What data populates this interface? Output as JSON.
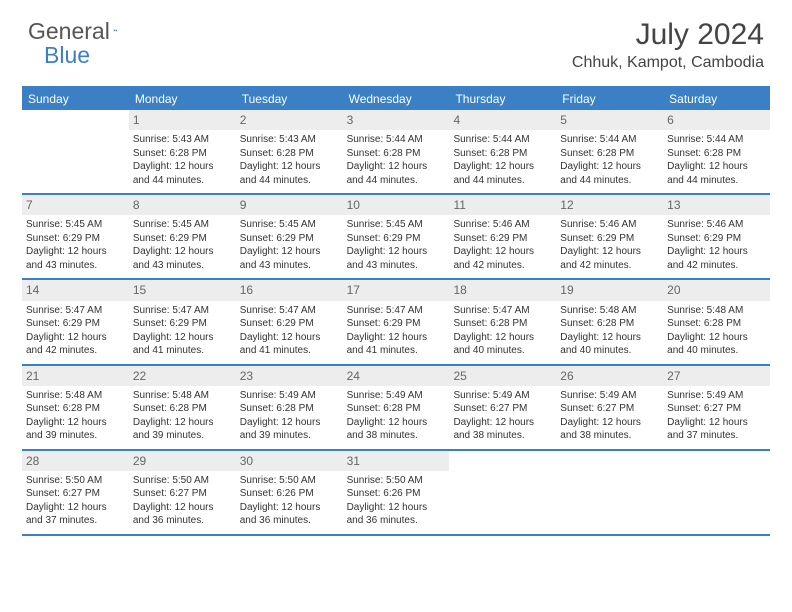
{
  "logo": {
    "word1": "General",
    "word2": "Blue"
  },
  "title": "July 2024",
  "location": "Chhuk, Kampot, Cambodia",
  "colors": {
    "brand_blue": "#3b7fc4",
    "header_bg": "#3b7fc4",
    "header_text": "#ffffff",
    "daynum_bg": "#ededed",
    "daynum_text": "#666666",
    "body_text": "#333333",
    "background": "#ffffff"
  },
  "day_headers": [
    "Sunday",
    "Monday",
    "Tuesday",
    "Wednesday",
    "Thursday",
    "Friday",
    "Saturday"
  ],
  "weeks": [
    [
      {
        "num": "",
        "lines": []
      },
      {
        "num": "1",
        "lines": [
          "Sunrise: 5:43 AM",
          "Sunset: 6:28 PM",
          "Daylight: 12 hours and 44 minutes."
        ]
      },
      {
        "num": "2",
        "lines": [
          "Sunrise: 5:43 AM",
          "Sunset: 6:28 PM",
          "Daylight: 12 hours and 44 minutes."
        ]
      },
      {
        "num": "3",
        "lines": [
          "Sunrise: 5:44 AM",
          "Sunset: 6:28 PM",
          "Daylight: 12 hours and 44 minutes."
        ]
      },
      {
        "num": "4",
        "lines": [
          "Sunrise: 5:44 AM",
          "Sunset: 6:28 PM",
          "Daylight: 12 hours and 44 minutes."
        ]
      },
      {
        "num": "5",
        "lines": [
          "Sunrise: 5:44 AM",
          "Sunset: 6:28 PM",
          "Daylight: 12 hours and 44 minutes."
        ]
      },
      {
        "num": "6",
        "lines": [
          "Sunrise: 5:44 AM",
          "Sunset: 6:28 PM",
          "Daylight: 12 hours and 44 minutes."
        ]
      }
    ],
    [
      {
        "num": "7",
        "lines": [
          "Sunrise: 5:45 AM",
          "Sunset: 6:29 PM",
          "Daylight: 12 hours and 43 minutes."
        ]
      },
      {
        "num": "8",
        "lines": [
          "Sunrise: 5:45 AM",
          "Sunset: 6:29 PM",
          "Daylight: 12 hours and 43 minutes."
        ]
      },
      {
        "num": "9",
        "lines": [
          "Sunrise: 5:45 AM",
          "Sunset: 6:29 PM",
          "Daylight: 12 hours and 43 minutes."
        ]
      },
      {
        "num": "10",
        "lines": [
          "Sunrise: 5:45 AM",
          "Sunset: 6:29 PM",
          "Daylight: 12 hours and 43 minutes."
        ]
      },
      {
        "num": "11",
        "lines": [
          "Sunrise: 5:46 AM",
          "Sunset: 6:29 PM",
          "Daylight: 12 hours and 42 minutes."
        ]
      },
      {
        "num": "12",
        "lines": [
          "Sunrise: 5:46 AM",
          "Sunset: 6:29 PM",
          "Daylight: 12 hours and 42 minutes."
        ]
      },
      {
        "num": "13",
        "lines": [
          "Sunrise: 5:46 AM",
          "Sunset: 6:29 PM",
          "Daylight: 12 hours and 42 minutes."
        ]
      }
    ],
    [
      {
        "num": "14",
        "lines": [
          "Sunrise: 5:47 AM",
          "Sunset: 6:29 PM",
          "Daylight: 12 hours and 42 minutes."
        ]
      },
      {
        "num": "15",
        "lines": [
          "Sunrise: 5:47 AM",
          "Sunset: 6:29 PM",
          "Daylight: 12 hours and 41 minutes."
        ]
      },
      {
        "num": "16",
        "lines": [
          "Sunrise: 5:47 AM",
          "Sunset: 6:29 PM",
          "Daylight: 12 hours and 41 minutes."
        ]
      },
      {
        "num": "17",
        "lines": [
          "Sunrise: 5:47 AM",
          "Sunset: 6:29 PM",
          "Daylight: 12 hours and 41 minutes."
        ]
      },
      {
        "num": "18",
        "lines": [
          "Sunrise: 5:47 AM",
          "Sunset: 6:28 PM",
          "Daylight: 12 hours and 40 minutes."
        ]
      },
      {
        "num": "19",
        "lines": [
          "Sunrise: 5:48 AM",
          "Sunset: 6:28 PM",
          "Daylight: 12 hours and 40 minutes."
        ]
      },
      {
        "num": "20",
        "lines": [
          "Sunrise: 5:48 AM",
          "Sunset: 6:28 PM",
          "Daylight: 12 hours and 40 minutes."
        ]
      }
    ],
    [
      {
        "num": "21",
        "lines": [
          "Sunrise: 5:48 AM",
          "Sunset: 6:28 PM",
          "Daylight: 12 hours and 39 minutes."
        ]
      },
      {
        "num": "22",
        "lines": [
          "Sunrise: 5:48 AM",
          "Sunset: 6:28 PM",
          "Daylight: 12 hours and 39 minutes."
        ]
      },
      {
        "num": "23",
        "lines": [
          "Sunrise: 5:49 AM",
          "Sunset: 6:28 PM",
          "Daylight: 12 hours and 39 minutes."
        ]
      },
      {
        "num": "24",
        "lines": [
          "Sunrise: 5:49 AM",
          "Sunset: 6:28 PM",
          "Daylight: 12 hours and 38 minutes."
        ]
      },
      {
        "num": "25",
        "lines": [
          "Sunrise: 5:49 AM",
          "Sunset: 6:27 PM",
          "Daylight: 12 hours and 38 minutes."
        ]
      },
      {
        "num": "26",
        "lines": [
          "Sunrise: 5:49 AM",
          "Sunset: 6:27 PM",
          "Daylight: 12 hours and 38 minutes."
        ]
      },
      {
        "num": "27",
        "lines": [
          "Sunrise: 5:49 AM",
          "Sunset: 6:27 PM",
          "Daylight: 12 hours and 37 minutes."
        ]
      }
    ],
    [
      {
        "num": "28",
        "lines": [
          "Sunrise: 5:50 AM",
          "Sunset: 6:27 PM",
          "Daylight: 12 hours and 37 minutes."
        ]
      },
      {
        "num": "29",
        "lines": [
          "Sunrise: 5:50 AM",
          "Sunset: 6:27 PM",
          "Daylight: 12 hours and 36 minutes."
        ]
      },
      {
        "num": "30",
        "lines": [
          "Sunrise: 5:50 AM",
          "Sunset: 6:26 PM",
          "Daylight: 12 hours and 36 minutes."
        ]
      },
      {
        "num": "31",
        "lines": [
          "Sunrise: 5:50 AM",
          "Sunset: 6:26 PM",
          "Daylight: 12 hours and 36 minutes."
        ]
      },
      {
        "num": "",
        "lines": []
      },
      {
        "num": "",
        "lines": []
      },
      {
        "num": "",
        "lines": []
      }
    ]
  ]
}
